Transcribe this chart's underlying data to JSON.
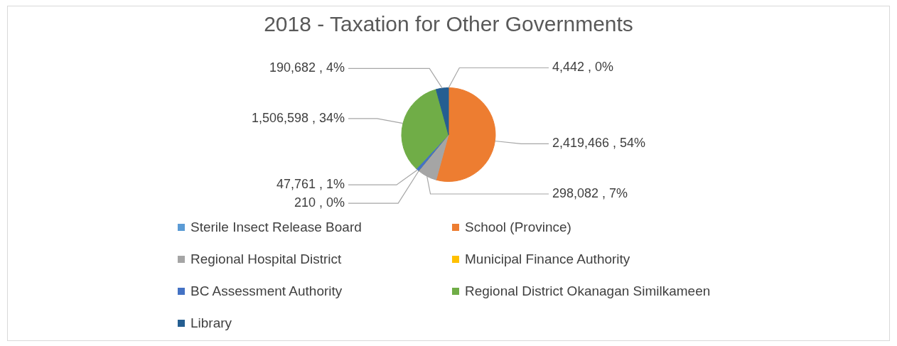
{
  "chart_data": {
    "type": "pie",
    "title": "2018 - Taxation for Other Governments",
    "categories": [
      "Sterile Insect Release Board",
      "School (Province)",
      "Regional Hospital District",
      "Municipal Finance Authority",
      "BC Assessment Authority",
      "Regional District Okanagan Similkameen",
      "Library"
    ],
    "values": [
      4442,
      2419466,
      298082,
      210,
      47761,
      1506598,
      190682
    ],
    "colors": [
      "#5b9bd5",
      "#ed7d31",
      "#a5a5a5",
      "#ffc000",
      "#4472c4",
      "#70ad47",
      "#255e91"
    ],
    "value_labels": [
      "4,442 , 0%",
      "2,419,466 , 54%",
      "298,082 , 7%",
      "210 , 0%",
      "47,761 , 1%",
      "1,506,598 , 34%",
      "190,682 , 4%"
    ],
    "legend": "bottom"
  }
}
